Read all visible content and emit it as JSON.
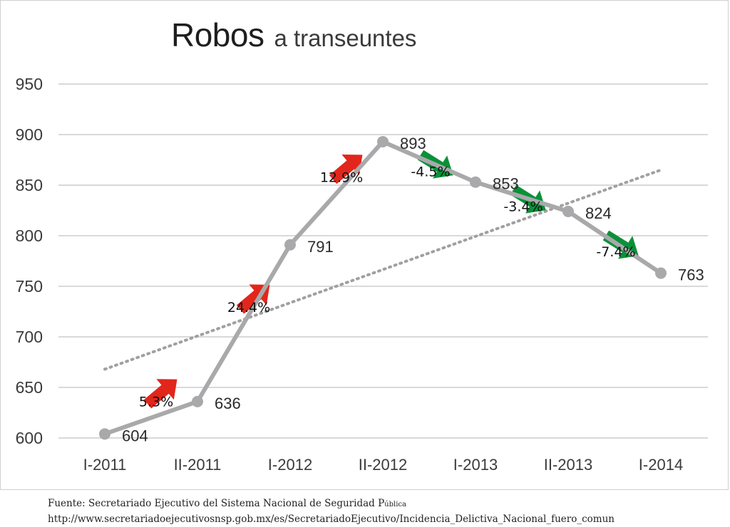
{
  "title_main": "Robos",
  "title_sub": "a transeuntes",
  "footer": {
    "line1": "Fuente: Secretariado Ejecutivo del Sistema Nacional de Seguridad P",
    "line1_small": "ública",
    "line2": "http://www.secretariadoejecutivosnsp.gob.mx/es/SecretariadoEjecutivo/Incidencia_Delictiva_Nacional_fuero_comun"
  },
  "chart_data": {
    "type": "line",
    "categories": [
      "I-2011",
      "II-2011",
      "I-2012",
      "II-2012",
      "I-2013",
      "II-2013",
      "I-2014"
    ],
    "values": [
      604,
      636,
      791,
      893,
      853,
      824,
      763
    ],
    "value_labels": [
      "604",
      "636",
      "791",
      "893",
      "853",
      "824",
      "763"
    ],
    "ylim": [
      600,
      950
    ],
    "yticks": [
      600,
      650,
      700,
      750,
      800,
      850,
      900,
      950
    ],
    "grid": true,
    "trendline": {
      "style": "dotted",
      "start": 668,
      "end": 865
    },
    "changes": [
      {
        "label": "5.3%",
        "direction": "up"
      },
      {
        "label": "24.4%",
        "direction": "up"
      },
      {
        "label": "12.9%",
        "direction": "up"
      },
      {
        "label": "-4.5%",
        "direction": "down"
      },
      {
        "label": "-3.4%",
        "direction": "down"
      },
      {
        "label": "-7.4%",
        "direction": "down"
      }
    ],
    "colors": {
      "line": "#a9a9ab",
      "grid": "#d9d9d9",
      "trend": "#a0a0a0",
      "up": "#e2261c",
      "down": "#0a9138"
    }
  }
}
